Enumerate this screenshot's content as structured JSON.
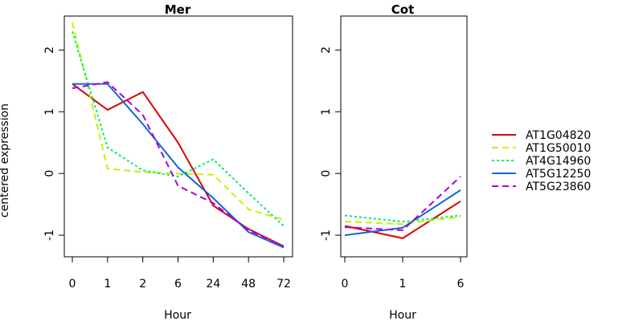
{
  "chart_data": [
    {
      "type": "line",
      "title": "Mer",
      "xlabel": "Hour",
      "ylabel": "centered expression",
      "categories": [
        "0",
        "1",
        "2",
        "6",
        "24",
        "48",
        "72"
      ],
      "yticks": [
        "-1",
        "0",
        "1",
        "2"
      ],
      "ylim": [
        -1.35,
        2.55
      ],
      "series": [
        {
          "name": "AT1G04820",
          "color": "#dd0000",
          "dash": "solid",
          "values": [
            1.45,
            1.03,
            1.32,
            0.5,
            -0.52,
            -0.9,
            -1.18
          ]
        },
        {
          "name": "AT1G50010",
          "color": "#ccee00",
          "dash": "dashed",
          "values": [
            2.45,
            0.08,
            0.02,
            0.0,
            -0.02,
            -0.58,
            -0.75
          ]
        },
        {
          "name": "AT4G14960",
          "color": "#00ee66",
          "dash": "dotted",
          "values": [
            2.3,
            0.42,
            0.05,
            -0.05,
            0.23,
            -0.32,
            -0.85
          ]
        },
        {
          "name": "AT5G12250",
          "color": "#1166dd",
          "dash": "solid",
          "values": [
            1.45,
            1.45,
            0.8,
            0.1,
            -0.4,
            -0.95,
            -1.2
          ]
        },
        {
          "name": "AT5G23860",
          "color": "#aa00dd",
          "dash": "dashed",
          "values": [
            1.38,
            1.48,
            0.95,
            -0.2,
            -0.48,
            -0.92,
            -1.18
          ]
        }
      ]
    },
    {
      "type": "line",
      "title": "Cot",
      "xlabel": "Hour",
      "categories": [
        "0",
        "1",
        "6"
      ],
      "yticks": [
        "-1",
        "0",
        "1",
        "2"
      ],
      "ylim": [
        -1.35,
        2.55
      ],
      "series": [
        {
          "name": "AT1G04820",
          "color": "#dd0000",
          "dash": "solid",
          "values": [
            -0.85,
            -1.05,
            -0.45
          ]
        },
        {
          "name": "AT1G50010",
          "color": "#ccee00",
          "dash": "dashed",
          "values": [
            -0.78,
            -0.82,
            -0.7
          ]
        },
        {
          "name": "AT4G14960",
          "color": "#00ee66",
          "dash": "dotted",
          "values": [
            -0.68,
            -0.78,
            -0.68
          ]
        },
        {
          "name": "AT5G12250",
          "color": "#1166dd",
          "dash": "solid",
          "values": [
            -1.0,
            -0.88,
            -0.27
          ]
        },
        {
          "name": "AT5G23860",
          "color": "#aa00dd",
          "dash": "dashed",
          "values": [
            -0.87,
            -0.92,
            -0.05
          ]
        }
      ]
    }
  ],
  "legend": {
    "position": "right",
    "entries": [
      {
        "label": "AT1G04820",
        "color": "#dd0000",
        "dash": "solid"
      },
      {
        "label": "AT1G50010",
        "color": "#ccee00",
        "dash": "dashed"
      },
      {
        "label": "AT4G14960",
        "color": "#00ee66",
        "dash": "dotted"
      },
      {
        "label": "AT5G12250",
        "color": "#1166dd",
        "dash": "solid"
      },
      {
        "label": "AT5G23860",
        "color": "#aa00dd",
        "dash": "dashed"
      }
    ]
  }
}
